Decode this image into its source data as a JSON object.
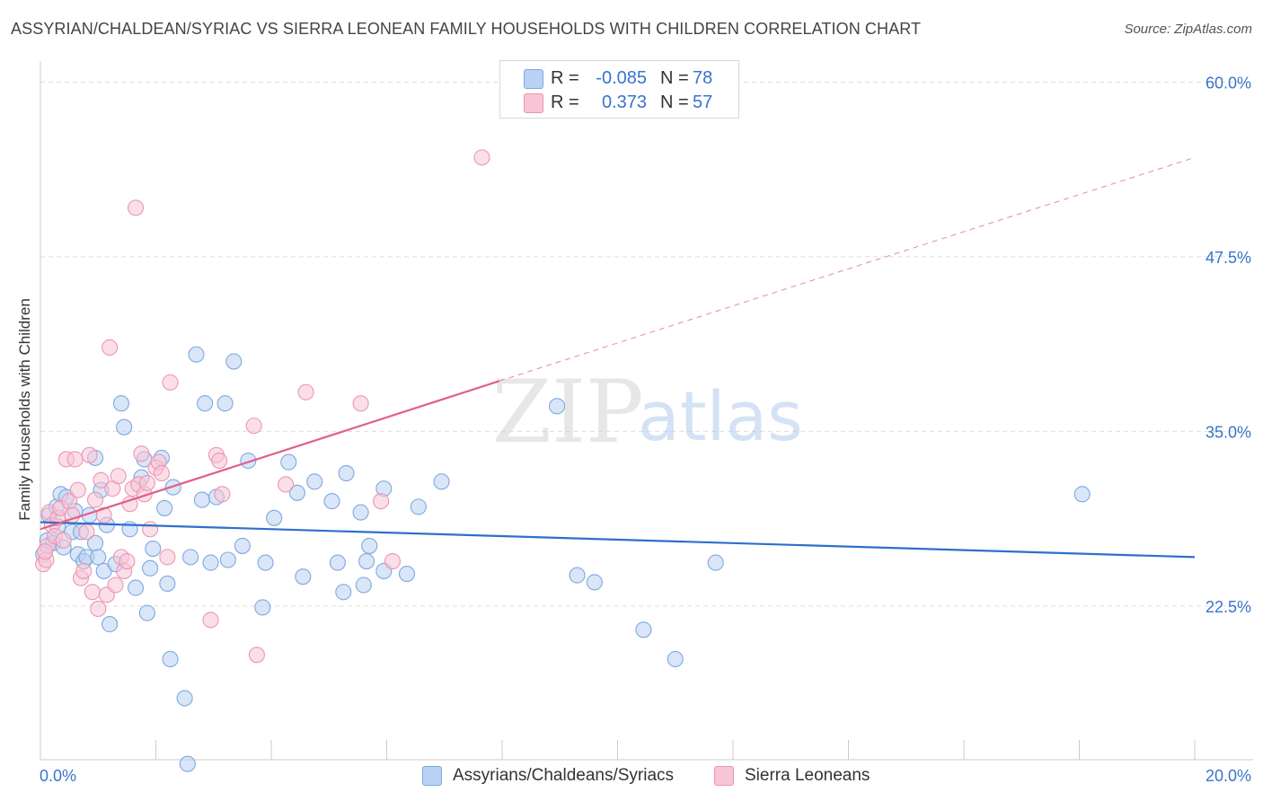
{
  "title": "ASSYRIAN/CHALDEAN/SYRIAC VS SIERRA LEONEAN FAMILY HOUSEHOLDS WITH CHILDREN CORRELATION CHART",
  "source": "Source: ZipAtlas.com",
  "watermark": {
    "zip": "ZIP",
    "atlas": "atlas"
  },
  "legend_top": {
    "rows": [
      {
        "r_label": "R =",
        "r_value": "-0.085",
        "n_label": "N =",
        "n_value": "78"
      },
      {
        "r_label": "R =",
        "r_value": "0.373",
        "n_label": "N =",
        "n_value": "57"
      }
    ]
  },
  "legend_bottom": {
    "items": [
      {
        "label": "Assyrians/Chaldeans/Syriacs"
      },
      {
        "label": "Sierra Leoneans"
      }
    ]
  },
  "colors": {
    "blue_fill": "#b9d2f3",
    "blue_stroke": "#7fa8e0",
    "blue_line": "#2e6fcc",
    "pink_fill": "#f7c5d5",
    "pink_stroke": "#eb96b3",
    "pink_line": "#e0608a",
    "axis_label": "#3a74c9",
    "grid": "#dddddd"
  },
  "chart_data": {
    "type": "scatter",
    "title": "ASSYRIAN/CHALDEAN/SYRIAC VS SIERRA LEONEAN FAMILY HOUSEHOLDS WITH CHILDREN CORRELATION CHART",
    "xlabel": "",
    "ylabel": "Family Households with Children",
    "xlim": [
      0,
      20
    ],
    "ylim": [
      11.5,
      61.5
    ],
    "x_tick_labels": [
      {
        "value": 0,
        "label": "0.0%"
      },
      {
        "value": 20,
        "label": "20.0%"
      }
    ],
    "y_tick_labels": [
      {
        "value": 22.5,
        "label": "22.5%"
      },
      {
        "value": 35.0,
        "label": "35.0%"
      },
      {
        "value": 47.5,
        "label": "47.5%"
      },
      {
        "value": 60.0,
        "label": "60.0%"
      }
    ],
    "grid": true,
    "legend_placement": "top-center",
    "series": [
      {
        "name": "Assyrians/Chaldeans/Syriacs",
        "r": -0.085,
        "n": 78,
        "trend": {
          "x": [
            0,
            20
          ],
          "y": [
            28.5,
            26.0
          ],
          "dashed_from": null
        },
        "points": [
          [
            0.05,
            26.2
          ],
          [
            0.12,
            27.2
          ],
          [
            0.15,
            29.0
          ],
          [
            0.22,
            27.0
          ],
          [
            0.28,
            29.6
          ],
          [
            0.35,
            30.5
          ],
          [
            0.4,
            26.7
          ],
          [
            0.45,
            30.3
          ],
          [
            0.55,
            27.8
          ],
          [
            0.6,
            29.3
          ],
          [
            0.65,
            26.2
          ],
          [
            0.7,
            27.8
          ],
          [
            0.75,
            25.7
          ],
          [
            0.8,
            26.0
          ],
          [
            0.85,
            29.0
          ],
          [
            0.95,
            33.1
          ],
          [
            0.95,
            27.0
          ],
          [
            1.0,
            26.0
          ],
          [
            1.05,
            30.8
          ],
          [
            1.1,
            25.0
          ],
          [
            1.15,
            28.3
          ],
          [
            1.2,
            21.2
          ],
          [
            1.3,
            25.5
          ],
          [
            1.4,
            37.0
          ],
          [
            1.45,
            35.3
          ],
          [
            1.55,
            28.0
          ],
          [
            1.65,
            23.8
          ],
          [
            1.75,
            31.7
          ],
          [
            1.8,
            33.0
          ],
          [
            1.85,
            22.0
          ],
          [
            1.9,
            25.2
          ],
          [
            1.95,
            26.6
          ],
          [
            2.1,
            33.1
          ],
          [
            2.15,
            29.5
          ],
          [
            2.2,
            24.1
          ],
          [
            2.25,
            18.7
          ],
          [
            2.3,
            31.0
          ],
          [
            2.5,
            15.9
          ],
          [
            2.55,
            11.2
          ],
          [
            2.6,
            26.0
          ],
          [
            2.7,
            40.5
          ],
          [
            2.8,
            30.1
          ],
          [
            2.85,
            37.0
          ],
          [
            2.95,
            25.6
          ],
          [
            3.05,
            30.3
          ],
          [
            3.2,
            37.0
          ],
          [
            3.25,
            25.8
          ],
          [
            3.35,
            40.0
          ],
          [
            3.5,
            26.8
          ],
          [
            3.6,
            32.9
          ],
          [
            3.85,
            22.4
          ],
          [
            3.9,
            25.6
          ],
          [
            4.05,
            28.8
          ],
          [
            4.3,
            32.8
          ],
          [
            4.45,
            30.6
          ],
          [
            4.55,
            24.6
          ],
          [
            4.75,
            31.4
          ],
          [
            5.05,
            30.0
          ],
          [
            5.15,
            25.6
          ],
          [
            5.25,
            23.5
          ],
          [
            5.3,
            32.0
          ],
          [
            5.55,
            29.2
          ],
          [
            5.6,
            24.0
          ],
          [
            5.65,
            25.7
          ],
          [
            5.7,
            26.8
          ],
          [
            5.95,
            25.0
          ],
          [
            5.95,
            30.9
          ],
          [
            6.35,
            24.8
          ],
          [
            6.55,
            29.6
          ],
          [
            6.95,
            31.4
          ],
          [
            8.95,
            36.8
          ],
          [
            9.3,
            24.7
          ],
          [
            9.6,
            24.2
          ],
          [
            10.45,
            20.8
          ],
          [
            11.0,
            18.7
          ],
          [
            11.7,
            25.6
          ],
          [
            18.05,
            30.5
          ],
          [
            0.3,
            28.2
          ]
        ]
      },
      {
        "name": "Sierra Leoneans",
        "r": 0.373,
        "n": 57,
        "trend": {
          "x": [
            0,
            7.95,
            20
          ],
          "y": [
            28.0,
            38.6,
            54.6
          ],
          "dashed_from": 7.95
        },
        "points": [
          [
            0.05,
            25.5
          ],
          [
            0.12,
            26.8
          ],
          [
            0.15,
            29.2
          ],
          [
            0.2,
            28.3
          ],
          [
            0.25,
            27.5
          ],
          [
            0.3,
            28.8
          ],
          [
            0.35,
            29.5
          ],
          [
            0.4,
            27.2
          ],
          [
            0.45,
            33.0
          ],
          [
            0.5,
            30.0
          ],
          [
            0.55,
            29.0
          ],
          [
            0.6,
            33.0
          ],
          [
            0.65,
            30.8
          ],
          [
            0.7,
            24.5
          ],
          [
            0.75,
            25.0
          ],
          [
            0.8,
            27.8
          ],
          [
            0.85,
            33.3
          ],
          [
            0.9,
            23.5
          ],
          [
            0.95,
            30.1
          ],
          [
            1.0,
            22.3
          ],
          [
            1.05,
            31.5
          ],
          [
            1.1,
            29.0
          ],
          [
            1.15,
            23.3
          ],
          [
            1.2,
            41.0
          ],
          [
            1.25,
            30.9
          ],
          [
            1.3,
            24.0
          ],
          [
            1.35,
            31.8
          ],
          [
            1.4,
            26.0
          ],
          [
            1.45,
            25.0
          ],
          [
            1.5,
            25.7
          ],
          [
            1.55,
            29.8
          ],
          [
            1.6,
            30.9
          ],
          [
            1.65,
            51.0
          ],
          [
            1.7,
            31.2
          ],
          [
            1.75,
            33.4
          ],
          [
            1.8,
            30.5
          ],
          [
            1.85,
            31.3
          ],
          [
            1.9,
            28.0
          ],
          [
            2.0,
            32.4
          ],
          [
            2.05,
            32.8
          ],
          [
            2.1,
            32.0
          ],
          [
            2.2,
            26.0
          ],
          [
            2.25,
            38.5
          ],
          [
            2.95,
            21.5
          ],
          [
            3.05,
            33.3
          ],
          [
            3.1,
            32.9
          ],
          [
            3.15,
            30.5
          ],
          [
            3.7,
            35.4
          ],
          [
            3.75,
            19.0
          ],
          [
            4.25,
            31.2
          ],
          [
            4.6,
            37.8
          ],
          [
            5.55,
            37.0
          ],
          [
            5.9,
            30.0
          ],
          [
            6.1,
            25.7
          ],
          [
            7.65,
            54.6
          ],
          [
            0.1,
            25.8
          ],
          [
            0.08,
            26.4
          ]
        ]
      }
    ]
  }
}
